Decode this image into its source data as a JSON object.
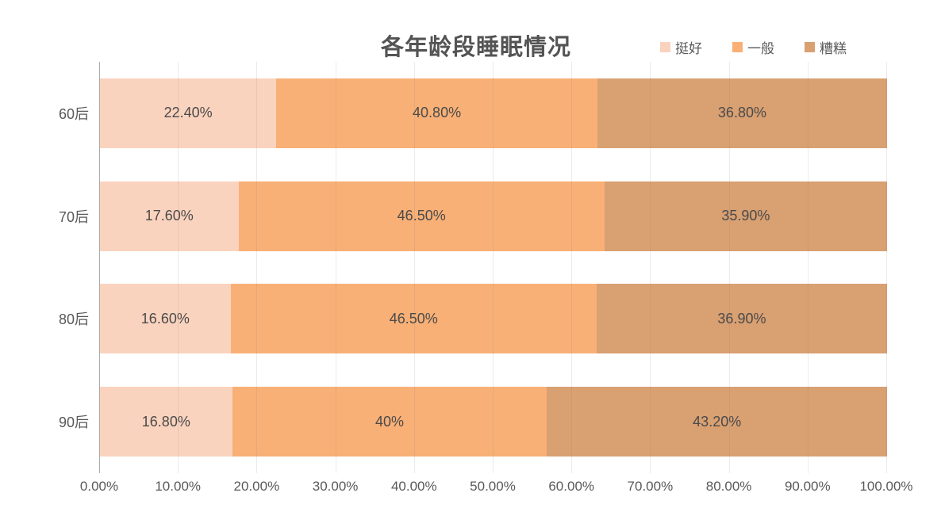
{
  "title": "各年龄段睡眠情况",
  "legend": {
    "position": "top-right",
    "items": [
      {
        "label": "挺好",
        "color": "#FAD3BE"
      },
      {
        "label": "一般",
        "color": "#F8B076"
      },
      {
        "label": "糟糕",
        "color": "#D9A072"
      }
    ]
  },
  "chart_data": {
    "type": "bar",
    "orientation": "horizontal",
    "stacked": true,
    "title": "各年龄段睡眠情况",
    "categories": [
      "60后",
      "70后",
      "80后",
      "90后"
    ],
    "series": [
      {
        "name": "挺好",
        "color": "#FAD3BE",
        "values": [
          22.4,
          17.6,
          16.6,
          16.8
        ],
        "labels": [
          "22.40%",
          "17.60%",
          "16.60%",
          "16.80%"
        ]
      },
      {
        "name": "一般",
        "color": "#F8B076",
        "values": [
          40.8,
          46.5,
          46.5,
          40
        ],
        "labels": [
          "40.80%",
          "46.50%",
          "46.50%",
          "40%"
        ]
      },
      {
        "name": "糟糕",
        "color": "#D9A072",
        "values": [
          36.8,
          35.9,
          36.9,
          43.2
        ],
        "labels": [
          "36.80%",
          "35.90%",
          "36.90%",
          "43.20%"
        ]
      }
    ],
    "xlabel": "",
    "ylabel": "",
    "xlim": [
      0,
      100
    ],
    "x_tick_step": 10,
    "x_ticks": [
      "0.00%",
      "10.00%",
      "20.00%",
      "30.00%",
      "40.00%",
      "50.00%",
      "60.00%",
      "70.00%",
      "80.00%",
      "90.00%",
      "100.00%"
    ],
    "grid": true,
    "legend_position": "top-right"
  }
}
